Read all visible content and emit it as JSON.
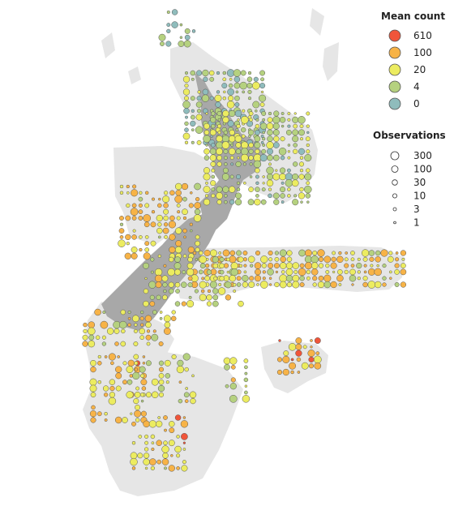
{
  "colors": {
    "background": "#ffffff",
    "seafloor": "#e6e6e6",
    "land": "#a8a8a8",
    "bubble_stroke": "#555555"
  },
  "legend_mean": {
    "title": "Mean count",
    "items": [
      {
        "label": "610",
        "color": "#f0553a"
      },
      {
        "label": "100",
        "color": "#f7b347"
      },
      {
        "label": "20",
        "color": "#ecec60"
      },
      {
        "label": "4",
        "color": "#b5d17f"
      },
      {
        "label": "0",
        "color": "#8fbcbc"
      }
    ]
  },
  "legend_obs": {
    "title": "Observations",
    "items": [
      {
        "label": "300",
        "value": 300
      },
      {
        "label": "100",
        "value": 100
      },
      {
        "label": "30",
        "value": 30
      },
      {
        "label": "10",
        "value": 10
      },
      {
        "label": "3",
        "value": 3
      },
      {
        "label": "1",
        "value": 1
      }
    ]
  }
}
